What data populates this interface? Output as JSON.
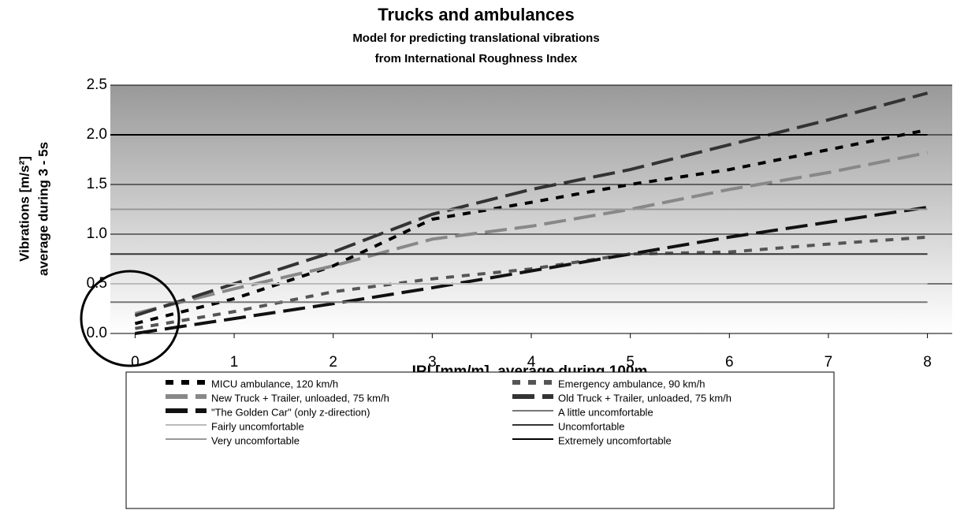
{
  "chart_data": {
    "type": "line",
    "title": "Trucks and ambulances",
    "subtitle": [
      "Model for predicting translational vibrations",
      "from International Roughness Index"
    ],
    "xlabel": "IRI [mm/m], average during 100m",
    "ylabel": [
      "Vibrations [m/s²]",
      "average during 3 - 5s"
    ],
    "x": [
      0,
      1,
      2,
      3,
      4,
      5,
      6,
      7,
      8
    ],
    "xlim": [
      -0.25,
      8.25
    ],
    "xticks": [
      0,
      1,
      2,
      3,
      4,
      5,
      6,
      7,
      8
    ],
    "ylim": [
      0,
      2.5
    ],
    "yticks": [
      {
        "value": 0,
        "label": "0.0"
      },
      0.5,
      {
        "value": 1,
        "label": "1.0"
      },
      1.5,
      {
        "value": 2,
        "label": "2.0"
      },
      2.5
    ],
    "grid": true,
    "series": [
      {
        "name": "MICU ambulance, 120 km/h",
        "color": "#000000",
        "dash": "short",
        "values": [
          0.1,
          0.35,
          0.68,
          1.15,
          1.32,
          1.5,
          1.65,
          1.85,
          2.05
        ]
      },
      {
        "name": "Emergency ambulance, 90 km/h",
        "color": "#555555",
        "dash": "short",
        "values": [
          0.05,
          0.22,
          0.42,
          0.55,
          0.65,
          0.8,
          0.82,
          0.9,
          0.97
        ]
      },
      {
        "name": "New Truck + Trailer, unloaded, 75 km/h",
        "color": "#888888",
        "dash": "long",
        "values": [
          0.2,
          0.45,
          0.68,
          0.95,
          1.08,
          1.25,
          1.45,
          1.62,
          1.82
        ]
      },
      {
        "name": "Old Truck + Trailer, unloaded, 75 km/h",
        "color": "#333333",
        "dash": "long",
        "values": [
          0.18,
          0.5,
          0.82,
          1.2,
          1.45,
          1.65,
          1.9,
          2.15,
          2.42
        ]
      },
      {
        "name": "\"The Golden Car\" (only z-direction)",
        "color": "#111111",
        "dash": "long",
        "values": [
          0.0,
          0.15,
          0.3,
          0.46,
          0.63,
          0.8,
          0.97,
          1.12,
          1.27
        ]
      },
      {
        "name": "A little uncomfortable",
        "color": "#777777",
        "dash": "solid",
        "value": 0.315
      },
      {
        "name": "Fairly uncomfortable",
        "color": "#bbbbbb",
        "dash": "solid",
        "value": 0.5
      },
      {
        "name": "Uncomfortable",
        "color": "#333333",
        "dash": "solid",
        "value": 0.8
      },
      {
        "name": "Very uncomfortable",
        "color": "#999999",
        "dash": "solid",
        "value": 1.25
      },
      {
        "name": "Extremely uncomfortable",
        "color": "#000000",
        "dash": "solid",
        "value": 2.0
      }
    ]
  }
}
